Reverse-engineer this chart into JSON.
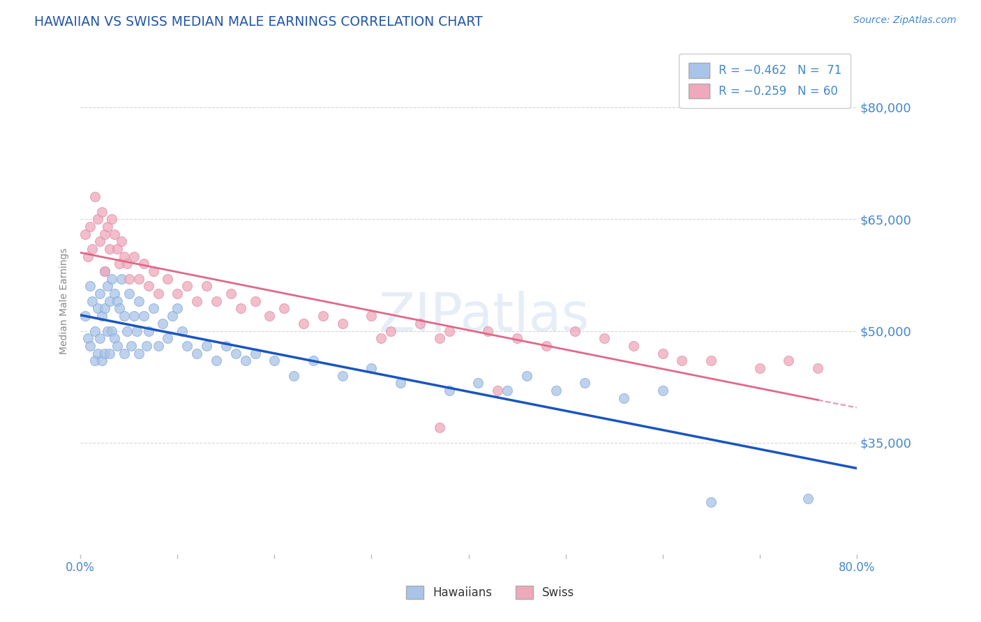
{
  "title": "HAWAIIAN VS SWISS MEDIAN MALE EARNINGS CORRELATION CHART",
  "source_text": "Source: ZipAtlas.com",
  "ylabel": "Median Male Earnings",
  "xlim": [
    0.0,
    0.8
  ],
  "ylim": [
    20000,
    88000
  ],
  "yticks": [
    35000,
    50000,
    65000,
    80000
  ],
  "ytick_labels": [
    "$35,000",
    "$50,000",
    "$65,000",
    "$80,000"
  ],
  "xticks": [
    0.0,
    0.1,
    0.2,
    0.3,
    0.4,
    0.5,
    0.6,
    0.7,
    0.8
  ],
  "xtick_labels": [
    "0.0%",
    "",
    "",
    "",
    "",
    "",
    "",
    "",
    "80.0%"
  ],
  "background_color": "#ffffff",
  "grid_color": "#cccccc",
  "hawaiians_color": "#a8c4e8",
  "swiss_color": "#f0a8bc",
  "hawaiians_line_color": "#1a55c0",
  "swiss_line_color": "#e06888",
  "label1": "Hawaiians",
  "label2": "Swiss",
  "watermark": "ZIPatlas",
  "title_color": "#2255aa",
  "axis_label_color": "#888888",
  "tick_label_color": "#4488cc",
  "hawaiians_x": [
    0.005,
    0.008,
    0.01,
    0.01,
    0.012,
    0.015,
    0.015,
    0.018,
    0.018,
    0.02,
    0.02,
    0.022,
    0.022,
    0.025,
    0.025,
    0.025,
    0.028,
    0.028,
    0.03,
    0.03,
    0.032,
    0.032,
    0.035,
    0.035,
    0.038,
    0.038,
    0.04,
    0.042,
    0.045,
    0.045,
    0.048,
    0.05,
    0.052,
    0.055,
    0.058,
    0.06,
    0.06,
    0.065,
    0.068,
    0.07,
    0.075,
    0.08,
    0.085,
    0.09,
    0.095,
    0.1,
    0.105,
    0.11,
    0.12,
    0.13,
    0.14,
    0.15,
    0.16,
    0.17,
    0.18,
    0.2,
    0.22,
    0.24,
    0.27,
    0.3,
    0.33,
    0.38,
    0.41,
    0.44,
    0.46,
    0.49,
    0.52,
    0.56,
    0.6,
    0.65,
    0.75
  ],
  "hawaiians_y": [
    52000,
    49000,
    56000,
    48000,
    54000,
    50000,
    46000,
    53000,
    47000,
    55000,
    49000,
    52000,
    46000,
    58000,
    53000,
    47000,
    56000,
    50000,
    54000,
    47000,
    57000,
    50000,
    55000,
    49000,
    54000,
    48000,
    53000,
    57000,
    52000,
    47000,
    50000,
    55000,
    48000,
    52000,
    50000,
    54000,
    47000,
    52000,
    48000,
    50000,
    53000,
    48000,
    51000,
    49000,
    52000,
    53000,
    50000,
    48000,
    47000,
    48000,
    46000,
    48000,
    47000,
    46000,
    47000,
    46000,
    44000,
    46000,
    44000,
    45000,
    43000,
    42000,
    43000,
    42000,
    44000,
    42000,
    43000,
    41000,
    42000,
    27000,
    27500
  ],
  "swiss_x": [
    0.005,
    0.008,
    0.01,
    0.012,
    0.015,
    0.018,
    0.02,
    0.022,
    0.025,
    0.025,
    0.028,
    0.03,
    0.032,
    0.035,
    0.038,
    0.04,
    0.042,
    0.045,
    0.048,
    0.05,
    0.055,
    0.06,
    0.065,
    0.07,
    0.075,
    0.08,
    0.09,
    0.1,
    0.11,
    0.12,
    0.13,
    0.14,
    0.155,
    0.165,
    0.18,
    0.195,
    0.21,
    0.23,
    0.25,
    0.27,
    0.3,
    0.32,
    0.35,
    0.38,
    0.31,
    0.42,
    0.45,
    0.37,
    0.48,
    0.51,
    0.54,
    0.57,
    0.6,
    0.62,
    0.43,
    0.65,
    0.7,
    0.73,
    0.76,
    0.37
  ],
  "swiss_y": [
    63000,
    60000,
    64000,
    61000,
    68000,
    65000,
    62000,
    66000,
    63000,
    58000,
    64000,
    61000,
    65000,
    63000,
    61000,
    59000,
    62000,
    60000,
    59000,
    57000,
    60000,
    57000,
    59000,
    56000,
    58000,
    55000,
    57000,
    55000,
    56000,
    54000,
    56000,
    54000,
    55000,
    53000,
    54000,
    52000,
    53000,
    51000,
    52000,
    51000,
    52000,
    50000,
    51000,
    50000,
    49000,
    50000,
    49000,
    49000,
    48000,
    50000,
    49000,
    48000,
    47000,
    46000,
    42000,
    46000,
    45000,
    46000,
    45000,
    37000
  ]
}
